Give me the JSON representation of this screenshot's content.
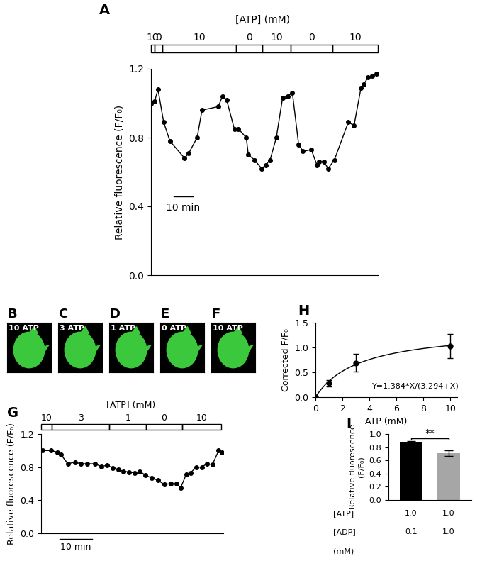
{
  "chart_data": [
    {
      "type": "line",
      "panel": "A",
      "bar_title": "[ATP] (mM)",
      "y_label": "Relative fluorescence (F/F₀)",
      "x": [
        0,
        1.9,
        3.7,
        6.7,
        10.0,
        17.8,
        20.0,
        24.4,
        27.0,
        35.6,
        37.8,
        40.0,
        44.1,
        46.3,
        50.4,
        51.5,
        54.8,
        58.5,
        60.7,
        63.0,
        66.3,
        69.6,
        72.2,
        74.8,
        78.1,
        80.4,
        84.8,
        87.8,
        88.9,
        91.5,
        93.7,
        97.0,
        104.4,
        107.4,
        111.1,
        112.6,
        114.8,
        117.0,
        119.3
      ],
      "values": [
        1.0,
        1.01,
        1.08,
        0.89,
        0.78,
        0.68,
        0.71,
        0.8,
        0.96,
        0.98,
        1.04,
        1.02,
        0.85,
        0.85,
        0.8,
        0.7,
        0.67,
        0.62,
        0.64,
        0.67,
        0.8,
        1.03,
        1.04,
        1.06,
        0.76,
        0.72,
        0.73,
        0.64,
        0.66,
        0.66,
        0.62,
        0.67,
        0.89,
        0.87,
        1.09,
        1.11,
        1.15,
        1.16,
        1.17
      ],
      "color": "#000000",
      "marker": "o",
      "line_style": "solid",
      "segments": [
        {
          "start": 0,
          "end": 2,
          "atp": 10
        },
        {
          "start": 2,
          "end": 6,
          "atp": 0
        },
        {
          "start": 6,
          "end": 45,
          "atp": 10
        },
        {
          "start": 45,
          "end": 59,
          "atp": 0
        },
        {
          "start": 59,
          "end": 74,
          "atp": 10
        },
        {
          "start": 74,
          "end": 96,
          "atp": 0
        },
        {
          "start": 96,
          "end": 120,
          "atp": 10
        }
      ],
      "scale_bar": {
        "value": 10,
        "label": "10 min"
      },
      "xlim": [
        0,
        120
      ],
      "xticks": [],
      "tick_labels": "y",
      "ylim": [
        0,
        1.2
      ],
      "yticks": [
        {
          "value": 0,
          "label": "0.0"
        },
        {
          "value": 0.4,
          "label": "0.4"
        },
        {
          "value": 0.8,
          "label": "0.8"
        },
        {
          "value": 1.2,
          "label": "1.2"
        }
      ]
    },
    {
      "type": "image",
      "panel": "B",
      "label": "10 ATP"
    },
    {
      "type": "image",
      "panel": "C",
      "label": "3 ATP"
    },
    {
      "type": "image",
      "panel": "D",
      "label": "1 ATP"
    },
    {
      "type": "image",
      "panel": "E",
      "label": "0 ATP"
    },
    {
      "type": "image",
      "panel": "F",
      "label": "10 ATP"
    },
    {
      "type": "line",
      "panel": "G",
      "bar_title": "[ATP] (mM)",
      "y_label": "Relative fluorescence (F/F₀)",
      "x": [
        0.4,
        3,
        4.9,
        6,
        8.1,
        10.2,
        11.9,
        14,
        16.2,
        18.1,
        20,
        21.7,
        23.4,
        24.9,
        26.6,
        28.3,
        29.8,
        31.5,
        33.4,
        35.3,
        37.2,
        39.1,
        40.9,
        42.1,
        43.8,
        45.1,
        46.8,
        48.5,
        50,
        51.7,
        53.6,
        54.5
      ],
      "values": [
        1.0,
        1.0,
        0.98,
        0.95,
        0.84,
        0.86,
        0.84,
        0.84,
        0.84,
        0.81,
        0.82,
        0.79,
        0.77,
        0.75,
        0.74,
        0.73,
        0.75,
        0.7,
        0.67,
        0.64,
        0.59,
        0.6,
        0.6,
        0.55,
        0.71,
        0.73,
        0.8,
        0.8,
        0.84,
        0.83,
        1.0,
        0.98
      ],
      "color": "#000000",
      "marker": "o",
      "line_style": "solid",
      "segments": [
        {
          "start": 0,
          "end": 3.2,
          "atp": 10
        },
        {
          "start": 3.2,
          "end": 20.6,
          "atp": 3
        },
        {
          "start": 20.6,
          "end": 31.7,
          "atp": 1
        },
        {
          "start": 31.7,
          "end": 42.6,
          "atp": 0
        },
        {
          "start": 42.6,
          "end": 54.3,
          "atp": 10
        }
      ],
      "scale_bar": {
        "value": 10,
        "label": "10 min"
      },
      "xlim": [
        0,
        55
      ],
      "xticks": [],
      "tick_labels": "y",
      "ylim": [
        0,
        1.2
      ],
      "yticks": [
        {
          "value": 0,
          "label": "0.0"
        },
        {
          "value": 0.4,
          "label": "0.4"
        },
        {
          "value": 0.8,
          "label": "0.8"
        },
        {
          "value": 1.2,
          "label": "1.2"
        }
      ]
    },
    {
      "type": "scatter",
      "panel": "H",
      "x_label": "ATP (mM)",
      "y_label": "Corrected F/F₀",
      "x": [
        0,
        1,
        3,
        10
      ],
      "values": [
        0,
        0.28,
        0.69,
        1.03
      ],
      "errors": [
        0,
        0.07,
        0.18,
        0.24
      ],
      "color": "#000000",
      "marker": "o",
      "fit": {
        "vmax": 1.384,
        "km": 3.294
      },
      "annotation": "Y=1.384*X/(3.294+X)",
      "xlim": [
        0,
        10.5
      ],
      "xticks": [
        0,
        2,
        4,
        6,
        8,
        10
      ],
      "ylim": [
        0,
        1.5
      ],
      "yticks": [
        {
          "value": 0,
          "label": "0.0"
        },
        {
          "value": 0.5,
          "label": "0.5"
        },
        {
          "value": 1.0,
          "label": "1.0"
        },
        {
          "value": 1.5,
          "label": "1.5"
        }
      ]
    },
    {
      "type": "bar",
      "panel": "I",
      "y_label": "Relative fluorescence\n(F/F₀)",
      "categories": [
        null,
        null
      ],
      "values": [
        0.88,
        0.71
      ],
      "errors": [
        0.01,
        0.04
      ],
      "colors": [
        "#000000",
        "#a6a6a6"
      ],
      "significance": "**",
      "table": {
        "rows": [
          {
            "label": "[ATP]",
            "values": [
              "1.0",
              "1.0"
            ]
          },
          {
            "label": "[ADP]",
            "values": [
              "0.1",
              "1.0"
            ]
          }
        ],
        "unit": "(mM)"
      },
      "ylim": [
        0,
        1.0
      ],
      "yticks": [
        {
          "value": 0,
          "label": "0.0"
        },
        {
          "value": 0.2,
          "label": "0.2"
        },
        {
          "value": 0.4,
          "label": "0.4"
        },
        {
          "value": 0.6,
          "label": "0.6"
        },
        {
          "value": 0.8,
          "label": "0.8"
        },
        {
          "value": 1.0,
          "label": "1.0"
        }
      ]
    }
  ]
}
